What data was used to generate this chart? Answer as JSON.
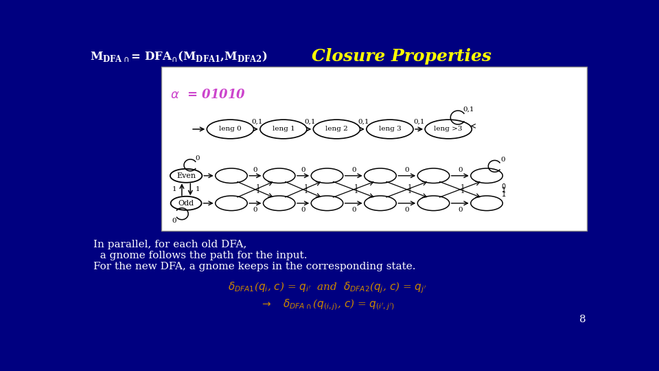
{
  "bg_color": "#000080",
  "title_left_color": "#FFFFFF",
  "title_right_color": "#FFFF00",
  "alpha_color": "#CC44CC",
  "diagram_bg": "#FFFFFF",
  "paragraph_color": "#FFFFFF",
  "formula_color": "#CC8800",
  "page_color": "#FFFFFF",
  "page_number": "8",
  "para_lines": [
    "In parallel, for each old DFA,",
    "  a gnome follows the path for the input.",
    "For the new DFA, a gnome keeps in the corresponding state."
  ]
}
